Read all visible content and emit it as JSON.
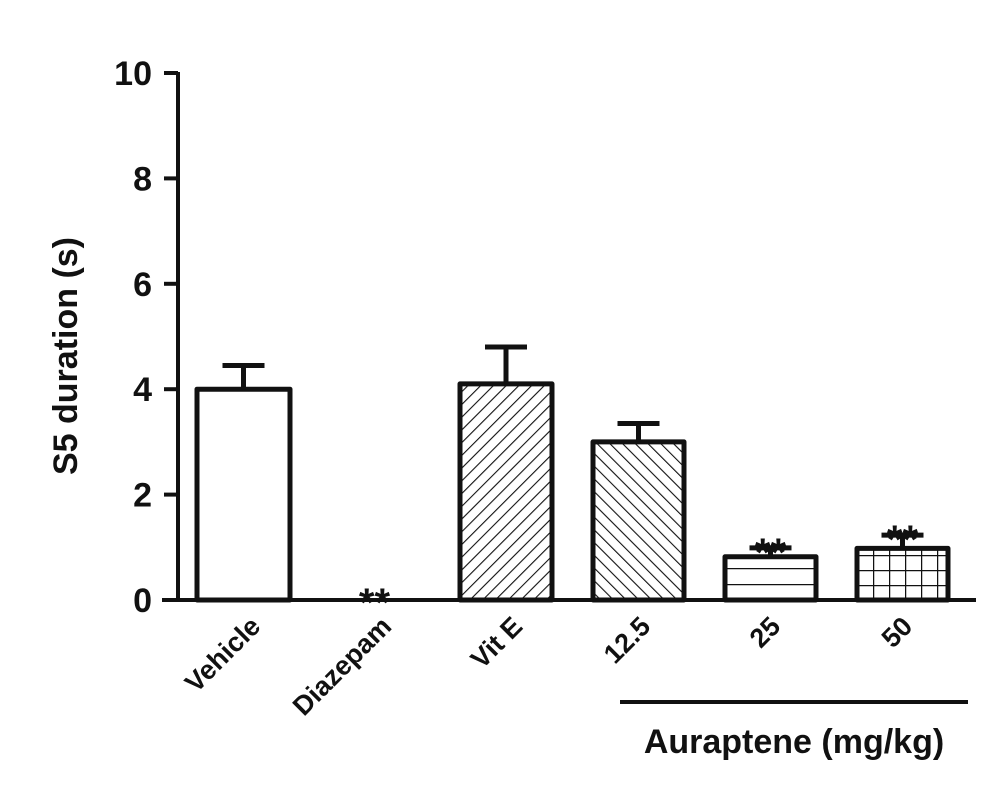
{
  "chart_data": {
    "type": "bar",
    "title": "",
    "xlabel": "",
    "ylabel": "S5 duration (s)",
    "ylim": [
      0,
      10
    ],
    "yticks": [
      0,
      2,
      4,
      6,
      8,
      10
    ],
    "grid": false,
    "legend": null,
    "categories": [
      "Vehicle",
      "Diazepam",
      "Vit E",
      "12.5",
      "25",
      "50"
    ],
    "values": [
      4.0,
      0.0,
      4.1,
      3.0,
      0.82,
      0.98
    ],
    "error": [
      0.45,
      0.0,
      0.7,
      0.35,
      0.17,
      0.25
    ],
    "significance": [
      "",
      "**",
      "",
      "",
      "**",
      "**"
    ],
    "patterns": [
      "none",
      "none",
      "diagonal-up",
      "diagonal-down",
      "horizontal",
      "grid"
    ],
    "group_bracket": {
      "label": "Auraptene (mg/kg)",
      "categories": [
        "12.5",
        "25",
        "50"
      ]
    }
  },
  "labels": {
    "ylabel": "S5 duration (s)",
    "yticks": [
      "0",
      "2",
      "4",
      "6",
      "8",
      "10"
    ],
    "categories": [
      "Vehicle",
      "Diazepam",
      "Vit E",
      "12.5",
      "25",
      "50"
    ],
    "group": "Auraptene (mg/kg)",
    "sig": [
      "",
      "**",
      "",
      "",
      "**",
      "**"
    ]
  }
}
